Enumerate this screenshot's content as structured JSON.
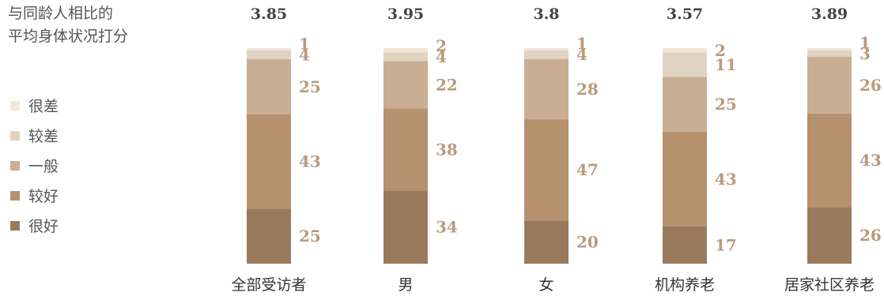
{
  "chart_data": {
    "type": "bar",
    "stacked": true,
    "title_lines": [
      "与同龄人相比的",
      "平均身体状况打分"
    ],
    "categories": [
      "全部受访者",
      "男",
      "女",
      "机构养老",
      "居家社区养老"
    ],
    "scores": [
      "3.85",
      "3.95",
      "3.8",
      "3.57",
      "3.89"
    ],
    "series": [
      {
        "name": "很好",
        "color": "#9a7a5c",
        "values": [
          25,
          34,
          20,
          17,
          26
        ]
      },
      {
        "name": "较好",
        "color": "#b6916d",
        "values": [
          43,
          38,
          47,
          43,
          43
        ]
      },
      {
        "name": "一般",
        "color": "#c9ae94",
        "values": [
          25,
          22,
          28,
          25,
          26
        ]
      },
      {
        "name": "较差",
        "color": "#e0d3c2",
        "values": [
          4,
          4,
          4,
          11,
          3
        ]
      },
      {
        "name": "很差",
        "color": "#f3e6d8",
        "values": [
          1,
          2,
          1,
          2,
          1
        ]
      }
    ],
    "legend_order": [
      "很差",
      "较差",
      "一般",
      "较好",
      "很好"
    ],
    "label_color": "#b99a7c",
    "ylim": [
      0,
      100
    ]
  }
}
